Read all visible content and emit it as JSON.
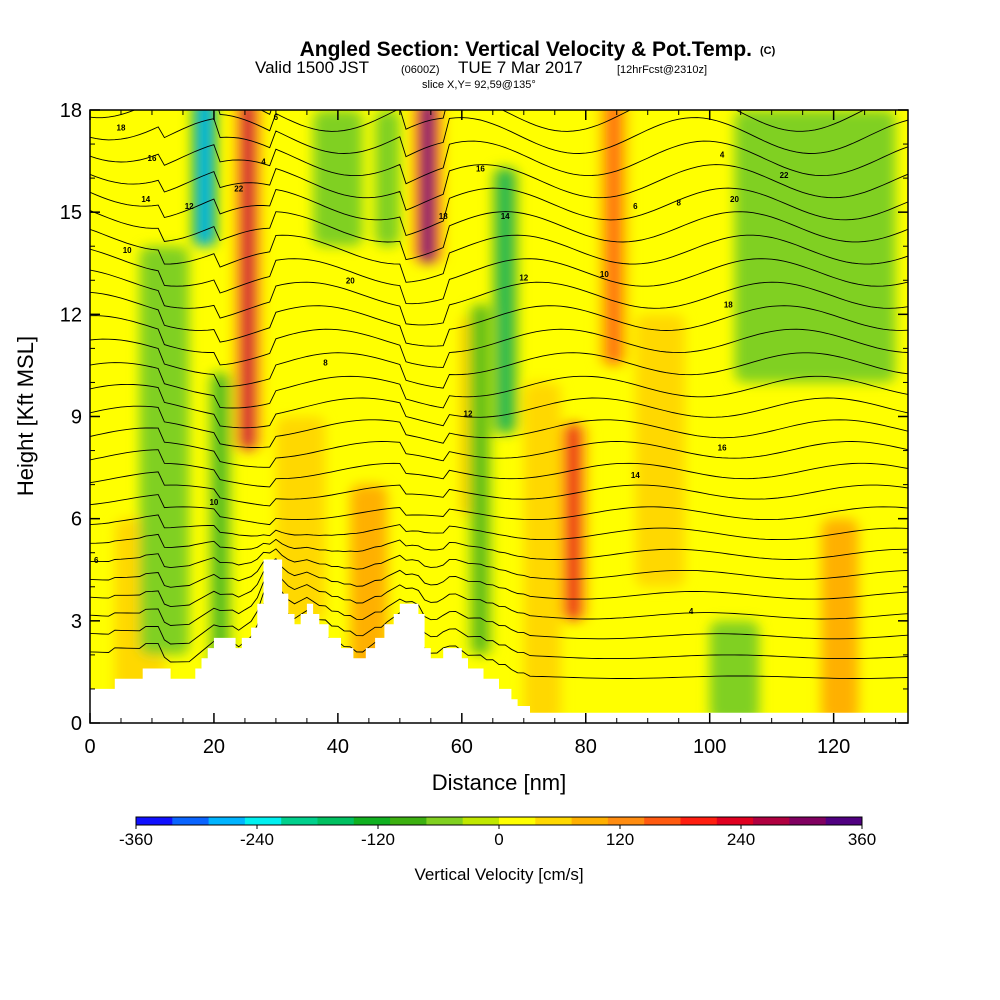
{
  "chart_data": {
    "type": "heatmap",
    "title": "Angled Section: Vertical Velocity & Pot.Temp.",
    "title_suffix": "(C)",
    "subtitle_parts": {
      "valid": "Valid 1500 JST",
      "utc": "(0600Z)",
      "date": "TUE 7 Mar 2017",
      "fcst": "[12hrFcst@2310z]"
    },
    "slice_text": "slice X,Y= 92,59@135°",
    "xlabel": "Distance [nm]",
    "ylabel": "Height [Kft MSL]",
    "xlim": [
      0,
      132
    ],
    "ylim": [
      0,
      18
    ],
    "xticks": [
      0,
      20,
      40,
      60,
      80,
      100,
      120
    ],
    "yticks": [
      0,
      3,
      6,
      9,
      12,
      15,
      18
    ],
    "grid": false,
    "colorbar": {
      "label": "Vertical Velocity [cm/s]",
      "min": -360,
      "max": 360,
      "ticks": [
        -360,
        -240,
        -120,
        0,
        120,
        240,
        360
      ],
      "colors": [
        "#1010ff",
        "#0a64ff",
        "#00b4ff",
        "#00f0f0",
        "#00d08c",
        "#00c060",
        "#10b020",
        "#3cb010",
        "#80d020",
        "#c0e800",
        "#ffff00",
        "#ffd800",
        "#ffb000",
        "#ff8c10",
        "#ff5a10",
        "#ff1e10",
        "#e00020",
        "#b00040",
        "#800060",
        "#500080"
      ]
    },
    "features": {
      "strong_updrafts": [
        {
          "x": 25.5,
          "ybottom": 8,
          "ytop": 18,
          "value": 260
        },
        {
          "x": 54.5,
          "ybottom": 13.5,
          "ytop": 18,
          "value": 340
        },
        {
          "x": 78,
          "ybottom": 3,
          "ytop": 8.5,
          "value": 230
        },
        {
          "x": 84.5,
          "ybottom": 10.5,
          "ytop": 18,
          "value": 170
        }
      ],
      "strong_downdrafts": [
        {
          "x": 18.5,
          "ybottom": 14,
          "ytop": 18,
          "value": -270
        },
        {
          "x": 67,
          "ybottom": 8.5,
          "ytop": 16,
          "value": -150
        },
        {
          "x": 21,
          "ybottom": 1.5,
          "ytop": 10,
          "value": -110
        },
        {
          "x": 63,
          "ybottom": 2,
          "ytop": 12,
          "value": -100
        }
      ]
    },
    "theta_contour_labels": [
      "18",
      "16",
      "14",
      "12",
      "10",
      "6",
      "4",
      "22",
      "20",
      "8"
    ],
    "terrain_profile": [
      [
        0,
        1
      ],
      [
        4,
        1
      ],
      [
        4,
        1.3
      ],
      [
        8.5,
        1.3
      ],
      [
        8.5,
        1.6
      ],
      [
        13,
        1.6
      ],
      [
        13,
        1.3
      ],
      [
        17,
        1.3
      ],
      [
        17,
        1.6
      ],
      [
        18,
        1.6
      ],
      [
        18,
        1.9
      ],
      [
        19,
        1.9
      ],
      [
        19,
        2.2
      ],
      [
        20,
        2.2
      ],
      [
        20,
        2.5
      ],
      [
        23.5,
        2.5
      ],
      [
        23.5,
        2.2
      ],
      [
        24.5,
        2.2
      ],
      [
        24.5,
        2.5
      ],
      [
        26,
        2.5
      ],
      [
        26,
        2.8
      ],
      [
        27,
        2.8
      ],
      [
        27,
        3.5
      ],
      [
        28,
        3.5
      ],
      [
        28,
        4.8
      ],
      [
        31,
        4.8
      ],
      [
        31,
        3.8
      ],
      [
        32,
        3.8
      ],
      [
        32,
        3.2
      ],
      [
        33,
        3.2
      ],
      [
        33,
        2.9
      ],
      [
        34,
        2.9
      ],
      [
        34,
        3.2
      ],
      [
        35,
        3.2
      ],
      [
        35,
        3.5
      ],
      [
        36,
        3.5
      ],
      [
        36,
        3.2
      ],
      [
        37,
        3.2
      ],
      [
        37,
        2.9
      ],
      [
        38.5,
        2.9
      ],
      [
        38.5,
        2.5
      ],
      [
        40.5,
        2.5
      ],
      [
        40.5,
        2.2
      ],
      [
        42.5,
        2.2
      ],
      [
        42.5,
        1.9
      ],
      [
        44.5,
        1.9
      ],
      [
        44.5,
        2.2
      ],
      [
        46,
        2.2
      ],
      [
        46,
        2.5
      ],
      [
        47.5,
        2.5
      ],
      [
        47.5,
        2.9
      ],
      [
        49,
        2.9
      ],
      [
        49,
        3.2
      ],
      [
        50,
        3.2
      ],
      [
        50,
        3.5
      ],
      [
        53,
        3.5
      ],
      [
        53,
        3.2
      ],
      [
        54,
        3.2
      ],
      [
        54,
        2.2
      ],
      [
        55,
        2.2
      ],
      [
        55,
        1.9
      ],
      [
        57,
        1.9
      ],
      [
        57,
        2.2
      ],
      [
        60,
        2.2
      ],
      [
        60,
        1.9
      ],
      [
        61,
        1.9
      ],
      [
        61,
        1.6
      ],
      [
        63.5,
        1.6
      ],
      [
        63.5,
        1.3
      ],
      [
        66,
        1.3
      ],
      [
        66,
        1.0
      ],
      [
        68,
        1.0
      ],
      [
        68,
        0.7
      ],
      [
        69,
        0.7
      ],
      [
        69,
        0.5
      ],
      [
        71,
        0.5
      ],
      [
        71,
        0.3
      ],
      [
        132,
        0.3
      ]
    ]
  }
}
